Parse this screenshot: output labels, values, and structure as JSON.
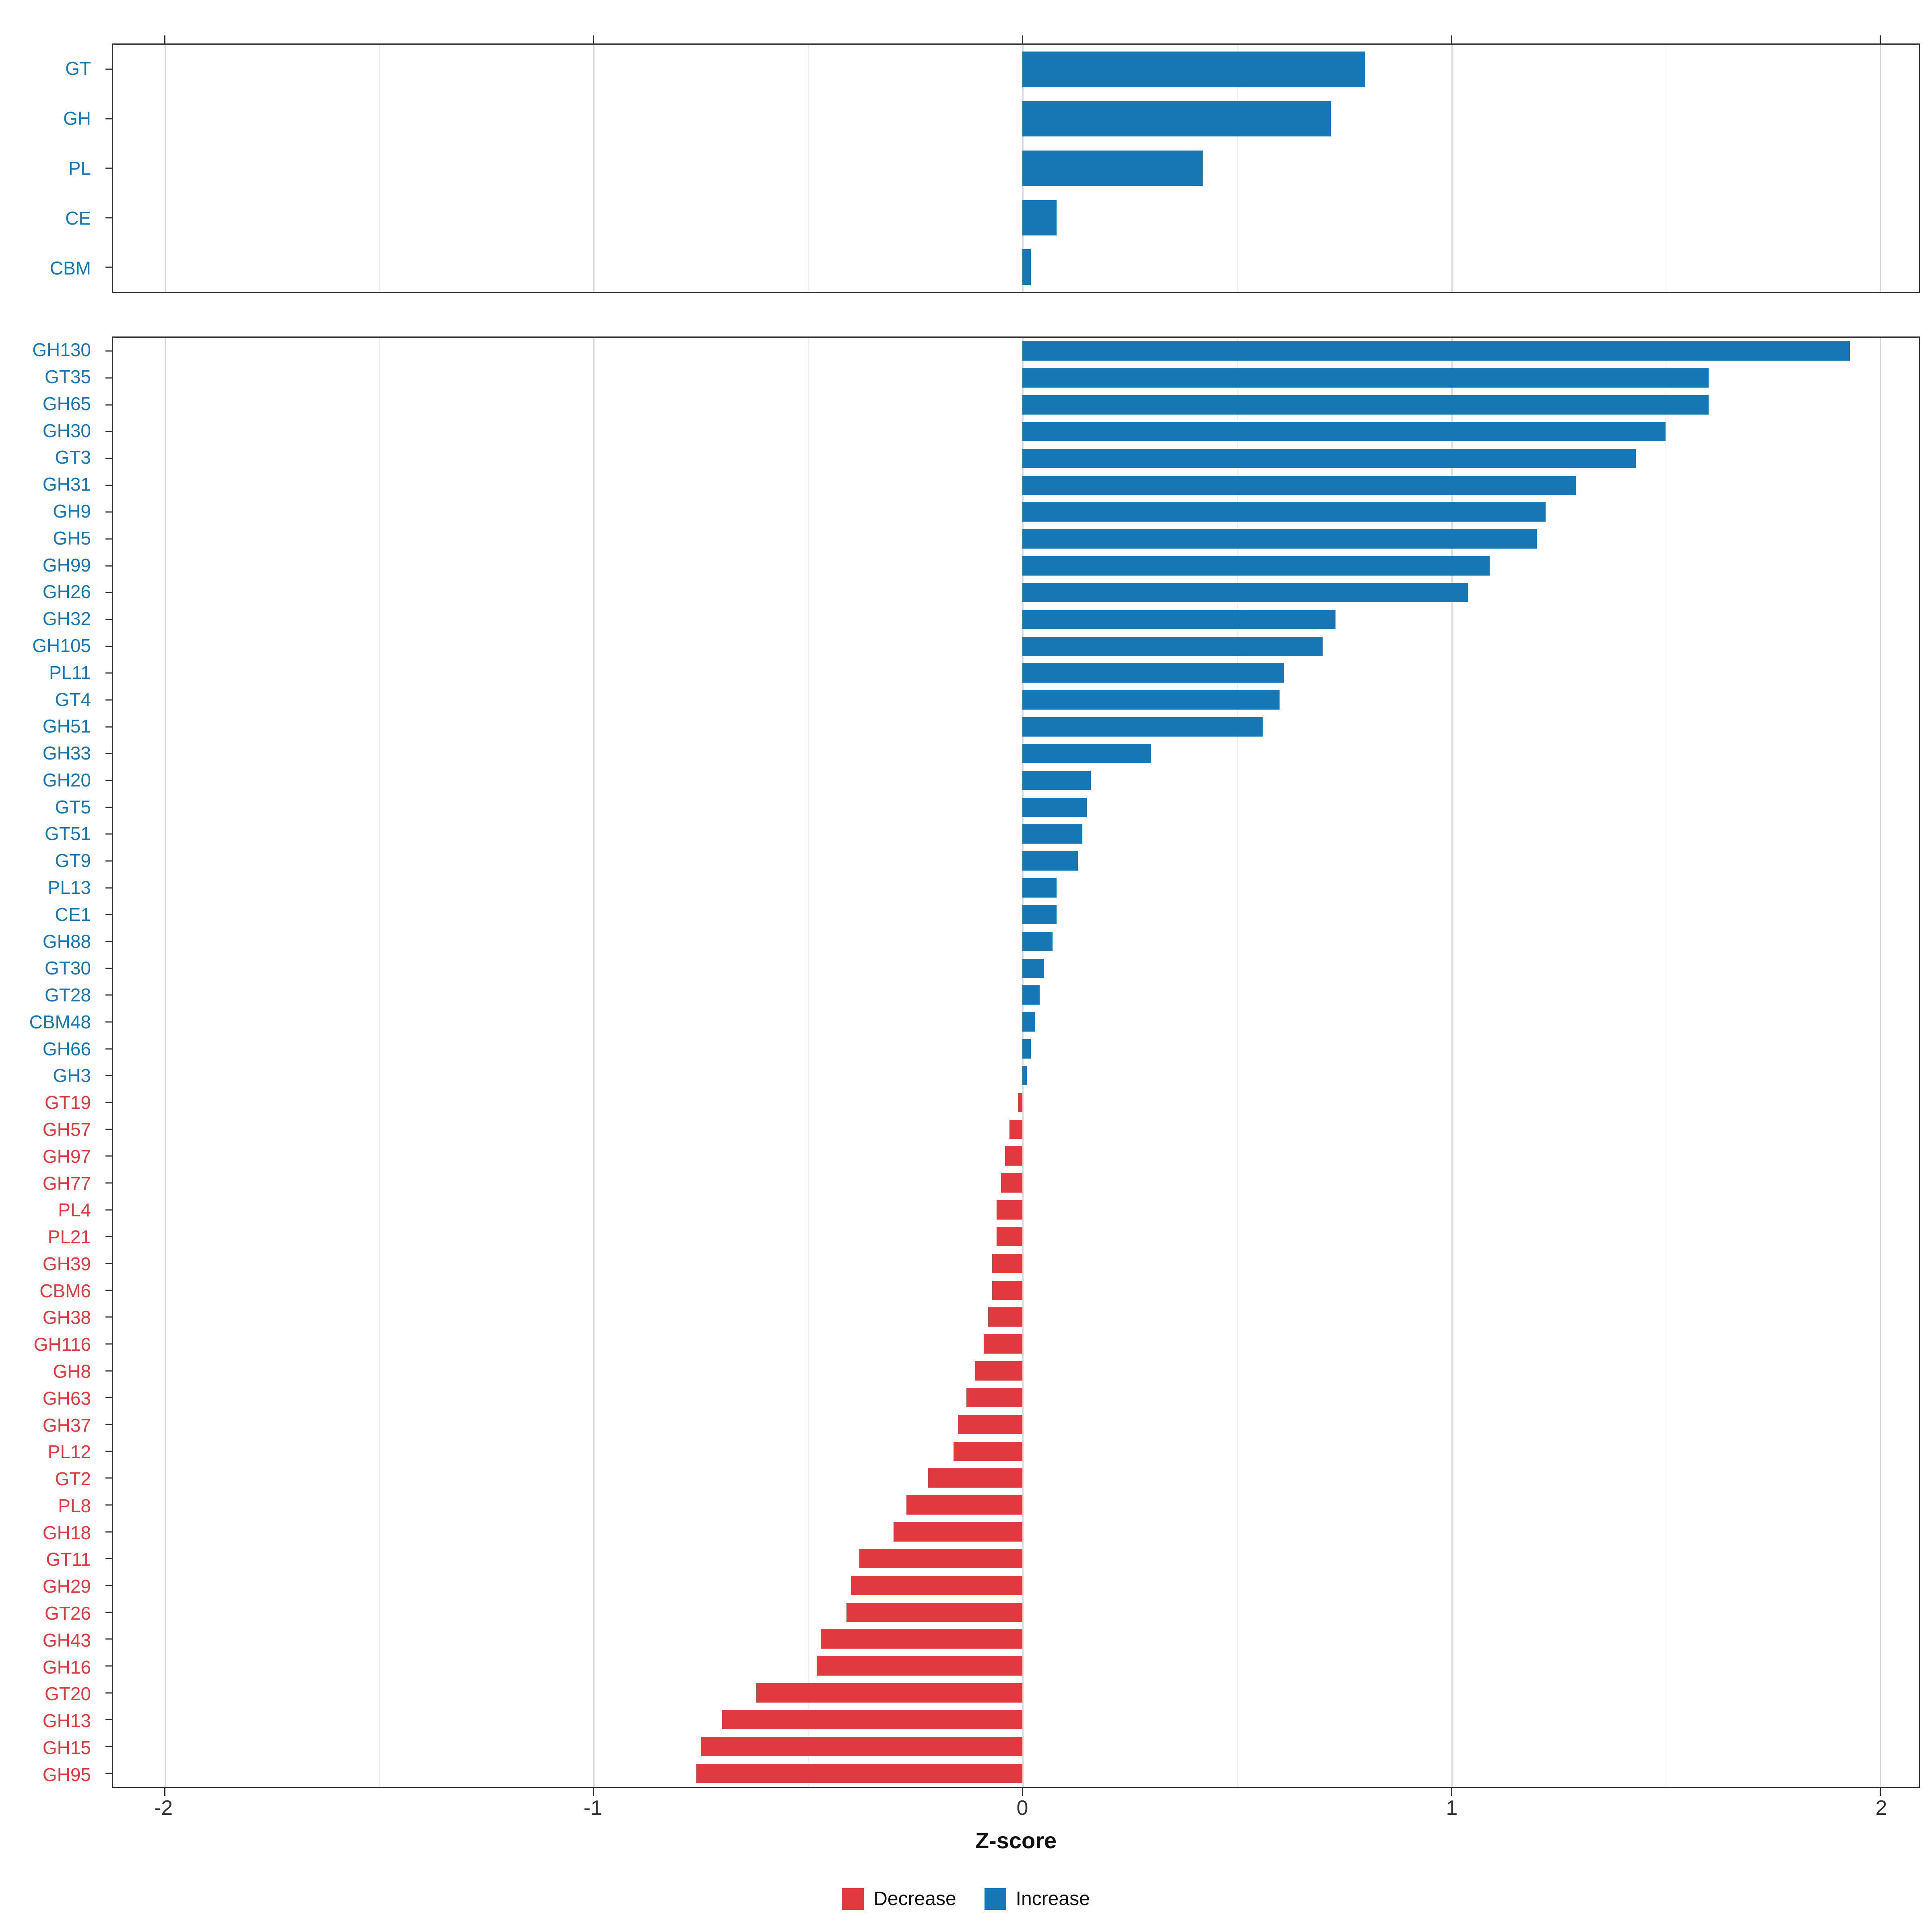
{
  "colors": {
    "increase": "#1777b5",
    "decrease": "#e0393f",
    "grid_major": "#d6d6d6",
    "grid_minor": "#ededed",
    "panel_border": "#2f2f2f",
    "tick_text": "#333333"
  },
  "axis": {
    "label": "Z-score",
    "xlim": [
      -2.12,
      2.09
    ],
    "ticks": [
      -2,
      -1,
      0,
      1,
      2
    ],
    "tick_labels": [
      "-2",
      "-1",
      "0",
      "1",
      "2"
    ],
    "minor_ticks": [
      -1.5,
      -0.5,
      0.5,
      1.5
    ],
    "grid": true
  },
  "legend": {
    "items": [
      {
        "label": "Decrease",
        "color_key": "decrease"
      },
      {
        "label": "Increase",
        "color_key": "increase"
      }
    ],
    "position": "bottom-center"
  },
  "chart_data": [
    {
      "type": "bar",
      "orientation": "horizontal",
      "panel": "class-summary",
      "categories": [
        "GT",
        "GH",
        "PL",
        "CE",
        "CBM"
      ],
      "values": [
        0.8,
        0.72,
        0.42,
        0.08,
        0.02
      ],
      "xlabel": "Z-score",
      "xlim": [
        -2.12,
        2.09
      ]
    },
    {
      "type": "bar",
      "orientation": "horizontal",
      "panel": "family-detail",
      "categories": [
        "GH130",
        "GT35",
        "GH65",
        "GH30",
        "GT3",
        "GH31",
        "GH9",
        "GH5",
        "GH99",
        "GH26",
        "GH32",
        "GH105",
        "PL11",
        "GT4",
        "GH51",
        "GH33",
        "GH20",
        "GT5",
        "GT51",
        "GT9",
        "PL13",
        "CE1",
        "GH88",
        "GT30",
        "GT28",
        "CBM48",
        "GH66",
        "GH3",
        "GT19",
        "GH57",
        "GH97",
        "GH77",
        "PL4",
        "PL21",
        "GH39",
        "CBM6",
        "GH38",
        "GH116",
        "GH8",
        "GH63",
        "GH37",
        "PL12",
        "GT2",
        "PL8",
        "GH18",
        "GT11",
        "GH29",
        "GT26",
        "GH43",
        "GH16",
        "GT20",
        "GH13",
        "GH15",
        "GH95"
      ],
      "values": [
        1.93,
        1.6,
        1.6,
        1.5,
        1.43,
        1.29,
        1.22,
        1.2,
        1.09,
        1.04,
        0.73,
        0.7,
        0.61,
        0.6,
        0.56,
        0.3,
        0.16,
        0.15,
        0.14,
        0.13,
        0.08,
        0.08,
        0.07,
        0.05,
        0.04,
        0.03,
        0.02,
        0.01,
        -0.01,
        -0.03,
        -0.04,
        -0.05,
        -0.06,
        -0.06,
        -0.07,
        -0.07,
        -0.08,
        -0.09,
        -0.11,
        -0.13,
        -0.15,
        -0.16,
        -0.22,
        -0.27,
        -0.3,
        -0.38,
        -0.4,
        -0.41,
        -0.47,
        -0.48,
        -0.62,
        -0.7,
        -0.75,
        -0.76
      ],
      "xlabel": "Z-score",
      "xlim": [
        -2.12,
        2.09
      ]
    }
  ]
}
